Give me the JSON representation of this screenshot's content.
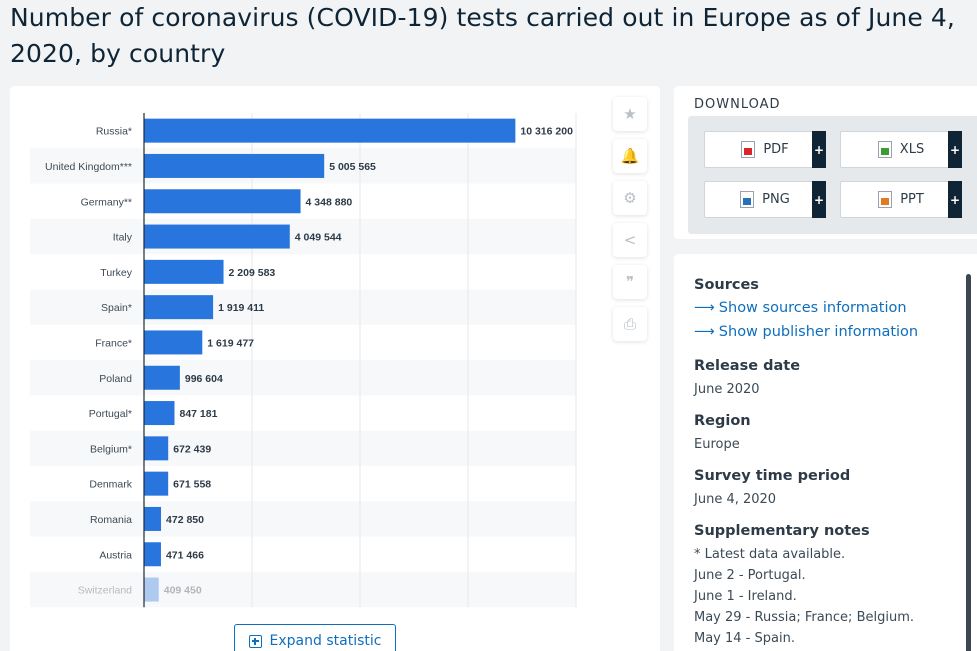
{
  "page": {
    "title": "Number of coronavirus (COVID-19) tests carried out in Europe as of June 4, 2020, by country"
  },
  "chart_data": {
    "type": "bar",
    "orientation": "horizontal",
    "categories": [
      "Russia*",
      "United Kingdom***",
      "Germany**",
      "Italy",
      "Turkey",
      "Spain*",
      "France*",
      "Poland",
      "Portugal*",
      "Belgium*",
      "Denmark",
      "Romania",
      "Austria",
      "Switzerland"
    ],
    "values": [
      10316200,
      5005565,
      4348880,
      4049544,
      2209583,
      1919411,
      1619477,
      996604,
      847181,
      672439,
      671558,
      472850,
      471466,
      409450
    ],
    "value_labels": [
      "10 316 200",
      "5 005 565",
      "4 348 880",
      "4 049 544",
      "2 209 583",
      "1 919 411",
      "1 619 477",
      "996 604",
      "847 181",
      "672 439",
      "671 558",
      "472 850",
      "471 466",
      "409 450"
    ],
    "xlim": [
      0,
      12000000
    ],
    "grid": true,
    "bar_color": "#2876dd",
    "faded_last_row": true
  },
  "chart_ui": {
    "expand_label": "Expand statistic",
    "tools": [
      {
        "icon": "star-icon",
        "glyph": "★"
      },
      {
        "icon": "bell-icon",
        "glyph": "🔔"
      },
      {
        "icon": "gear-icon",
        "glyph": "⚙"
      },
      {
        "icon": "share-icon",
        "glyph": "<"
      },
      {
        "icon": "quote-icon",
        "glyph": "❞"
      },
      {
        "icon": "print-icon",
        "glyph": "⎙"
      }
    ]
  },
  "download": {
    "title": "DOWNLOAD",
    "buttons": [
      {
        "label": "PDF",
        "color": "#d8262a"
      },
      {
        "label": "XLS",
        "color": "#3d9b35"
      },
      {
        "label": "PNG",
        "color": "#2a6fb8"
      },
      {
        "label": "PPT",
        "color": "#e07b1f"
      }
    ],
    "plus": "+"
  },
  "info": {
    "sources_label": "Sources",
    "sources_link": "Show sources information",
    "publisher_link": "Show publisher information",
    "release_label": "Release date",
    "release_value": "June 2020",
    "region_label": "Region",
    "region_value": "Europe",
    "survey_label": "Survey time period",
    "survey_value": "June 4, 2020",
    "notes_label": "Supplementary notes",
    "notes": [
      "* Latest data available.",
      "June 2 - Portugal.",
      "June 1 - Ireland.",
      "May 29 - Russia; France; Belgium.",
      "May 14 - Spain."
    ]
  },
  "colors": {
    "accent": "#0f6fbd",
    "title": "#0f2536",
    "bar": "#2876dd"
  }
}
